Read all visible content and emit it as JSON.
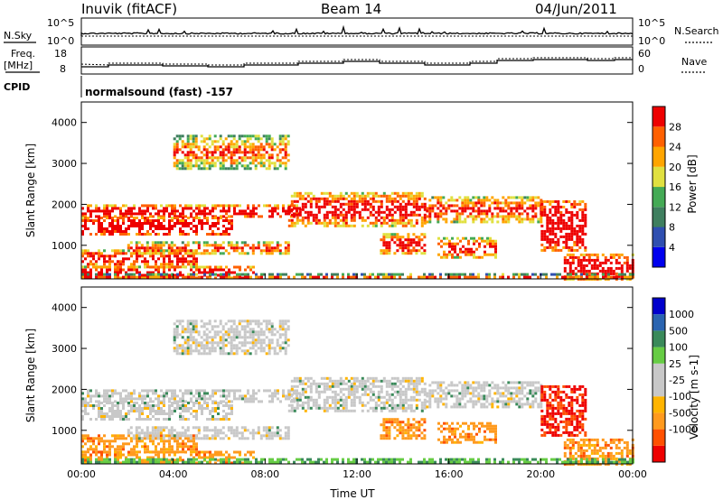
{
  "header": {
    "station": "Inuvik (fitACF)",
    "beam": "Beam 14",
    "date": "04/Jun/2011"
  },
  "top_panels": {
    "nsky_label": "N.Sky",
    "nsky_ticks": [
      "10^5",
      "10^0"
    ],
    "nsearch_label": "N.Search",
    "nsearch_ticks": [
      "10^5",
      "10^0"
    ],
    "freq_label": "Freq.",
    "freq_unit": "[MHz]",
    "freq_ticks": [
      "18",
      "8"
    ],
    "nave_label": "Nave",
    "nave_ticks": [
      "60",
      "0"
    ],
    "cpid_label": "CPID",
    "cpid_text": "normalsound (fast) -157"
  },
  "colors": {
    "power_scale": [
      "#0000ee",
      "#2f4fb0",
      "#3f7f5f",
      "#44aa55",
      "#e0e040",
      "#ffa500",
      "#ff6000",
      "#ee0000"
    ],
    "velocity_scale": [
      "#ee0000",
      "#ff5000",
      "#ff9a1e",
      "#ffb400",
      "#c8c8c8",
      "#c8c8c8",
      "#66cc44",
      "#3a8a5a",
      "#2a64b0",
      "#0000cc"
    ]
  },
  "chart_data": [
    {
      "type": "heatmap",
      "name": "power",
      "ylabel": "Slant Range [km]",
      "ylim": [
        180,
        4500
      ],
      "yticks": [
        "1000",
        "2000",
        "3000",
        "4000"
      ],
      "xlim": [
        0,
        24
      ],
      "colorbar_label": "Power [dB]",
      "colorbar_ticks": [
        "4",
        "8",
        "12",
        "16",
        "20",
        "24",
        "28"
      ],
      "colorbar_range": [
        0,
        32
      ]
    },
    {
      "type": "heatmap",
      "name": "velocity",
      "ylabel": "Slant Range [km]",
      "ylim": [
        180,
        4500
      ],
      "yticks": [
        "1000",
        "2000",
        "3000",
        "4000"
      ],
      "xlim": [
        0,
        24
      ],
      "xticks": [
        "00:00",
        "04:00",
        "08:00",
        "12:00",
        "16:00",
        "20:00",
        "00:00"
      ],
      "xlabel": "Time UT",
      "colorbar_label": "Velocity [m s-1]",
      "colorbar_ticks": [
        "1000",
        "500",
        "100",
        "25",
        "-25",
        "-100",
        "-500",
        "-1000"
      ]
    }
  ]
}
